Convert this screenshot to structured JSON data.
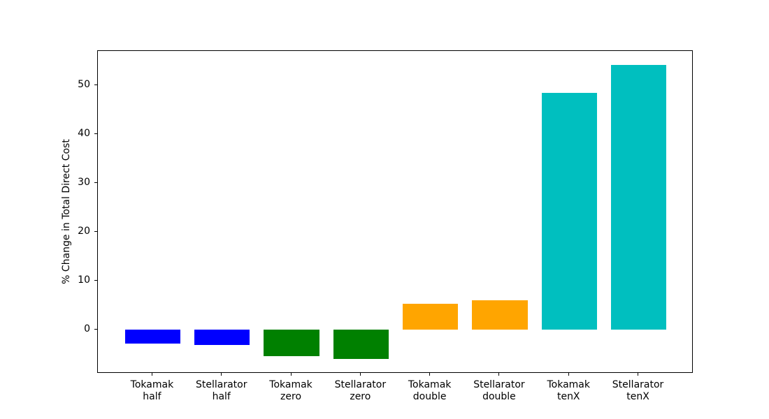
{
  "figure": {
    "background": "#ffffff",
    "spine_color": "#000000",
    "text_color": "#000000"
  },
  "chart_data": {
    "type": "bar",
    "title": "",
    "xlabel": "",
    "ylabel": "% Change in Total Direct Cost",
    "categories": [
      "Tokamak half",
      "Stellarator half",
      "Tokamak zero",
      "Stellarator zero",
      "Tokamak double",
      "Stellarator double",
      "Tokamak tenX",
      "Stellarator tenX"
    ],
    "values": [
      -2.8,
      -3.1,
      -5.4,
      -6.0,
      5.3,
      6.0,
      48.5,
      54.2
    ],
    "bar_colors": [
      "#0000ff",
      "#0000ff",
      "#008000",
      "#008000",
      "#ffa500",
      "#ffa500",
      "#00bfbf",
      "#00bfbf"
    ],
    "color_groups": {
      "half": "#0000ff",
      "zero": "#008000",
      "double": "#ffa500",
      "tenX": "#00bfbf"
    },
    "yticks": [
      0,
      10,
      20,
      30,
      40,
      50
    ],
    "ylim": [
      -9,
      57
    ],
    "bar_width_fraction": 0.8,
    "grid": false,
    "legend": null
  }
}
